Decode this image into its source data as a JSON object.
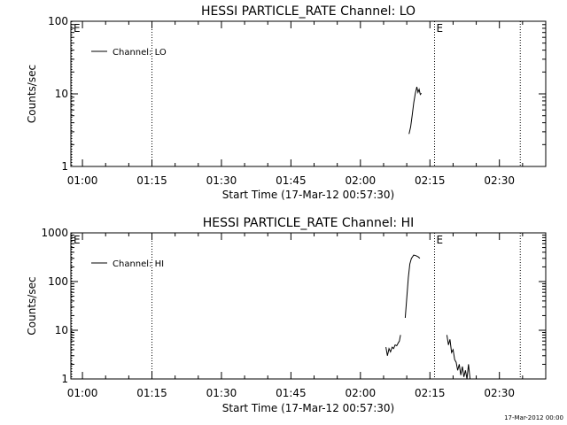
{
  "footer_date": "17-Mar-2012 00:00",
  "chart_data": [
    {
      "type": "line",
      "title": "HESSI PARTICLE_RATE Channel: LO",
      "xlabel": "Start Time (17-Mar-12 00:57:30)",
      "ylabel": "Counts/sec",
      "yscale": "log",
      "xlim": [
        "00:57:30",
        "02:40:00"
      ],
      "ylim": [
        1,
        100
      ],
      "x_ticks": [
        "01:00",
        "01:15",
        "01:30",
        "01:45",
        "02:00",
        "02:15",
        "02:30"
      ],
      "y_ticks": [
        "1",
        "10",
        "100"
      ],
      "legend": {
        "label": "Channel: LO",
        "position": "top-left"
      },
      "markers": [
        {
          "x": "00:57:30",
          "label": "E"
        },
        {
          "x": "01:15:00",
          "label": ""
        },
        {
          "x": "02:16:00",
          "label": "E"
        },
        {
          "x": "02:34:30",
          "label": ""
        }
      ],
      "series": [
        {
          "name": "Channel: LO",
          "segments": [
            [
              [
                "02:10:30",
                2.8
              ],
              [
                "02:10:50",
                3.5
              ],
              [
                "02:11:10",
                5.0
              ],
              [
                "02:11:30",
                7.5
              ],
              [
                "02:11:50",
                10.0
              ],
              [
                "02:12:10",
                12.5
              ],
              [
                "02:12:25",
                10.5
              ],
              [
                "02:12:40",
                11.5
              ],
              [
                "02:12:55",
                9.8
              ],
              [
                "02:13:10",
                10.2
              ]
            ]
          ]
        }
      ]
    },
    {
      "type": "line",
      "title": "HESSI PARTICLE_RATE Channel: HI",
      "xlabel": "Start Time (17-Mar-12 00:57:30)",
      "ylabel": "Counts/sec",
      "yscale": "log",
      "xlim": [
        "00:57:30",
        "02:40:00"
      ],
      "ylim": [
        1,
        1000
      ],
      "x_ticks": [
        "01:00",
        "01:15",
        "01:30",
        "01:45",
        "02:00",
        "02:15",
        "02:30"
      ],
      "y_ticks": [
        "1",
        "10",
        "100",
        "1000"
      ],
      "legend": {
        "label": "Channel: HI",
        "position": "top-left"
      },
      "markers": [
        {
          "x": "00:57:30",
          "label": "E"
        },
        {
          "x": "01:15:00",
          "label": ""
        },
        {
          "x": "02:16:00",
          "label": "E"
        },
        {
          "x": "02:34:30",
          "label": ""
        }
      ],
      "series": [
        {
          "name": "Channel: HI",
          "segments": [
            [
              [
                "02:05:30",
                4.5
              ],
              [
                "02:05:50",
                3.0
              ],
              [
                "02:06:10",
                4.2
              ],
              [
                "02:06:30",
                3.6
              ],
              [
                "02:06:50",
                4.5
              ],
              [
                "02:07:10",
                4.2
              ],
              [
                "02:07:30",
                5.0
              ],
              [
                "02:07:50",
                4.8
              ],
              [
                "02:08:10",
                5.5
              ],
              [
                "02:08:25",
                6.0
              ],
              [
                "02:08:40",
                8.0
              ]
            ],
            [
              [
                "02:09:40",
                18.0
              ],
              [
                "02:10:00",
                45.0
              ],
              [
                "02:10:20",
                120.0
              ],
              [
                "02:10:40",
                230.0
              ],
              [
                "02:11:00",
                300.0
              ],
              [
                "02:11:30",
                350.0
              ],
              [
                "02:12:00",
                340.0
              ],
              [
                "02:12:30",
                320.0
              ],
              [
                "02:12:50",
                300.0
              ]
            ],
            [
              [
                "02:18:40",
                8.0
              ],
              [
                "02:19:00",
                5.0
              ],
              [
                "02:19:20",
                6.5
              ],
              [
                "02:19:40",
                3.5
              ],
              [
                "02:20:00",
                4.0
              ],
              [
                "02:20:20",
                2.5
              ],
              [
                "02:20:40",
                2.2
              ],
              [
                "02:21:00",
                1.5
              ],
              [
                "02:21:20",
                2.0
              ],
              [
                "02:21:40",
                1.2
              ],
              [
                "02:22:00",
                1.8
              ],
              [
                "02:22:20",
                1.1
              ],
              [
                "02:22:40",
                1.5
              ],
              [
                "02:23:00",
                1.0
              ],
              [
                "02:23:20",
                2.0
              ],
              [
                "02:23:40",
                1.0
              ]
            ]
          ]
        }
      ]
    }
  ]
}
